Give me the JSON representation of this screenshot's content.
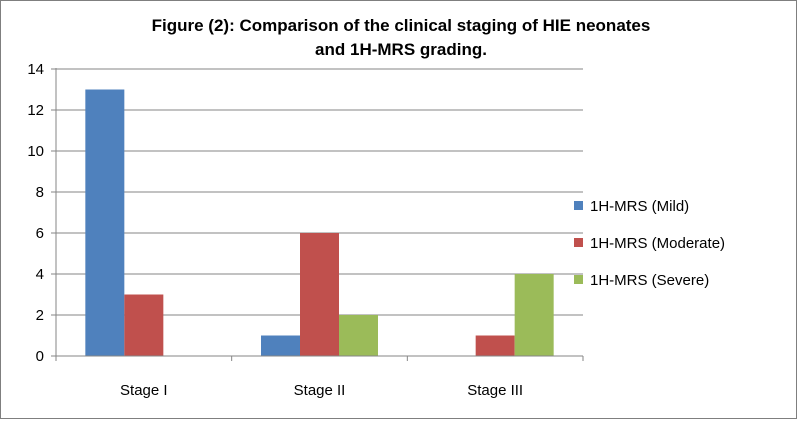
{
  "chart_data": {
    "type": "bar",
    "title": "Figure (2):  Comparison of the clinical staging of HIE neonates\nand 1H-MRS grading.",
    "xlabel": "",
    "ylabel": "",
    "categories": [
      "Stage I",
      "Stage  II",
      "Stage III"
    ],
    "series": [
      {
        "name": "1H-MRS (Mild)",
        "color": "#4f81bd",
        "values": [
          13,
          1,
          0
        ]
      },
      {
        "name": "1H-MRS (Moderate)",
        "color": "#c0504d",
        "values": [
          3,
          6,
          1
        ]
      },
      {
        "name": "1H-MRS (Severe)",
        "color": "#9bbb59",
        "values": [
          0,
          2,
          4
        ]
      }
    ],
    "ylim": [
      0,
      14
    ],
    "yticks": [
      0,
      2,
      4,
      6,
      8,
      10,
      12,
      14
    ],
    "grid": true,
    "legend_position": "right"
  }
}
